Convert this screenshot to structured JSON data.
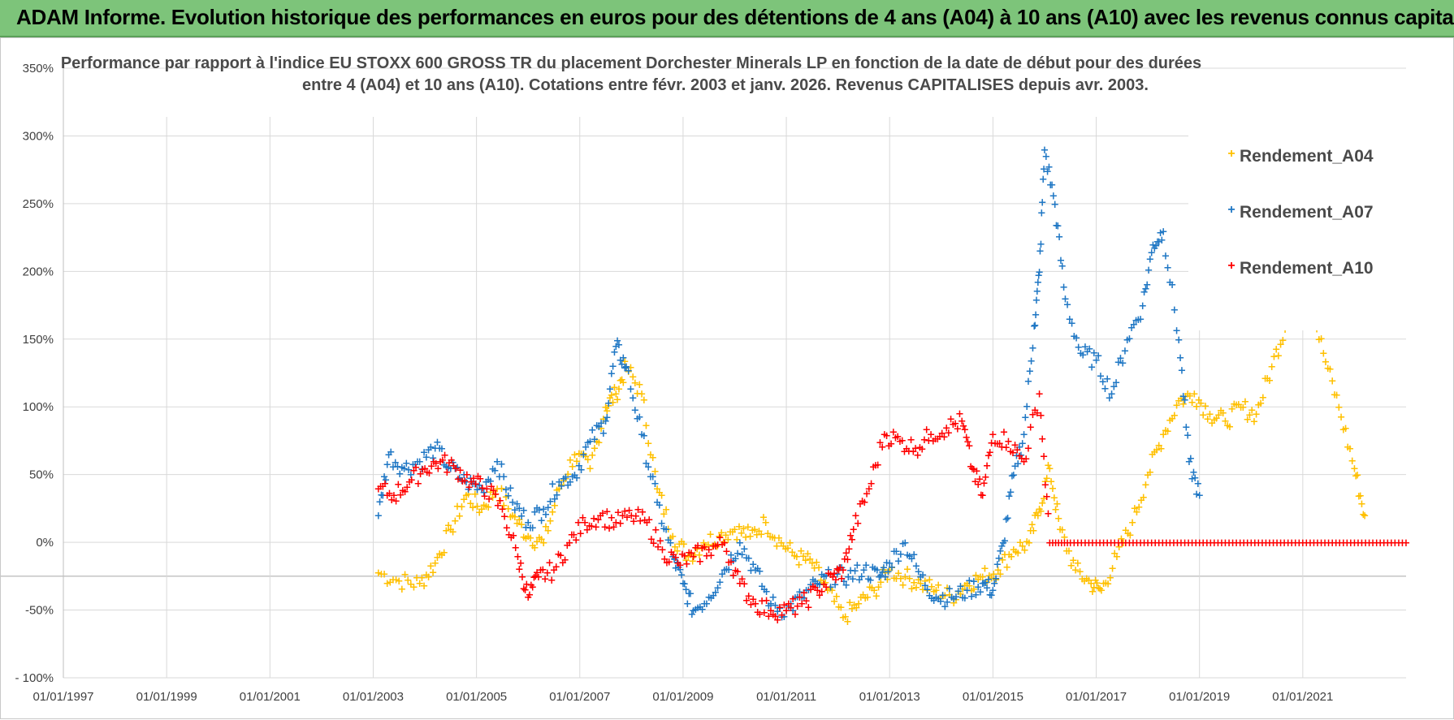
{
  "header": {
    "title": "ADAM Informe. Evolution historique des performances en euros pour des détentions de 4 ans (A04) à 10 ans (A10) avec les revenus connus capitalisés"
  },
  "colors": {
    "header_bg": "#7dc47a",
    "A04": "#ffc000",
    "A07": "#1f77c4",
    "A10": "#ff0000",
    "grid": "#d9d9d9"
  },
  "chart_data": {
    "type": "scatter",
    "title_line1": "Performance par rapport à l'indice EU STOXX 600 GROSS TR  du placement Dorchester Minerals LP en fonction de la date de début pour des durées",
    "title_line2": "entre 4 (A04) et 10 ans (A10).  Cotations entre févr. 2003 et janv. 2026. Revenus CAPITALISES depuis avr. 2003.",
    "xlabel": "",
    "ylabel": "",
    "xlim": [
      1997.0,
      2023.0
    ],
    "ylim": [
      -100,
      350
    ],
    "x_ticks": [
      "01/01/1997",
      "01/01/1999",
      "01/01/2001",
      "01/01/2003",
      "01/01/2005",
      "01/01/2007",
      "01/01/2009",
      "01/01/2011",
      "01/01/2013",
      "01/01/2015",
      "01/01/2017",
      "01/01/2019",
      "01/01/2021"
    ],
    "y_ticks": [
      "350%",
      "300%",
      "250%",
      "200%",
      "150%",
      "100%",
      "50%",
      "0%",
      "-50%",
      "- 100%"
    ],
    "grid": true,
    "legend_position": "top-right",
    "series": [
      {
        "name": "Rendement_A04",
        "color": "#ffc000",
        "x": [
          2003.1,
          2003.5,
          2003.9,
          2004.2,
          2004.5,
          2004.8,
          2005.1,
          2005.4,
          2005.7,
          2006.0,
          2006.3,
          2006.6,
          2006.9,
          2007.2,
          2007.5,
          2007.7,
          2007.9,
          2008.2,
          2008.5,
          2008.8,
          2009.1,
          2009.4,
          2009.7,
          2010.0,
          2010.3,
          2010.6,
          2010.9,
          2011.2,
          2011.5,
          2011.8,
          2012.1,
          2012.4,
          2012.7,
          2013.0,
          2013.3,
          2013.6,
          2013.9,
          2014.2,
          2014.5,
          2014.8,
          2015.1,
          2015.4,
          2015.7,
          2015.9,
          2016.1,
          2016.3,
          2016.6,
          2016.9,
          2017.1,
          2017.4,
          2017.7,
          2018.0,
          2018.3,
          2018.6,
          2018.9,
          2019.2,
          2019.5,
          2019.8,
          2020.1,
          2020.4,
          2020.7,
          2020.9,
          2021.1,
          2021.4,
          2021.7,
          2022.0,
          2022.2
        ],
        "y": [
          -22,
          -28,
          -30,
          -15,
          10,
          35,
          25,
          40,
          20,
          5,
          0,
          40,
          65,
          55,
          100,
          110,
          130,
          110,
          40,
          5,
          -10,
          0,
          5,
          10,
          5,
          15,
          0,
          -10,
          -15,
          -35,
          -55,
          -45,
          -35,
          -20,
          -25,
          -30,
          -35,
          -40,
          -30,
          -25,
          -20,
          -5,
          0,
          25,
          55,
          10,
          -20,
          -30,
          -35,
          -10,
          15,
          50,
          80,
          105,
          110,
          95,
          90,
          100,
          95,
          130,
          165,
          175,
          185,
          140,
          100,
          55,
          20
        ]
      },
      {
        "name": "Rendement_A07",
        "color": "#1f77c4",
        "x": [
          2003.1,
          2003.3,
          2003.6,
          2003.9,
          2004.2,
          2004.5,
          2004.8,
          2005.1,
          2005.4,
          2005.7,
          2006.0,
          2006.3,
          2006.6,
          2006.9,
          2007.2,
          2007.5,
          2007.7,
          2007.9,
          2008.2,
          2008.5,
          2008.8,
          2009.0,
          2009.2,
          2009.5,
          2009.8,
          2010.1,
          2010.4,
          2010.7,
          2011.0,
          2011.3,
          2011.6,
          2011.9,
          2012.2,
          2012.5,
          2012.8,
          2013.0,
          2013.3,
          2013.6,
          2013.9,
          2014.2,
          2014.5,
          2014.8,
          2015.0,
          2015.2,
          2015.4,
          2015.6,
          2015.8,
          2015.9,
          2016.0,
          2016.2,
          2016.4,
          2016.7,
          2017.0,
          2017.3,
          2017.6,
          2017.9,
          2018.1,
          2018.3,
          2018.6,
          2018.8,
          2019.0
        ],
        "y": [
          20,
          65,
          55,
          60,
          70,
          55,
          45,
          40,
          60,
          30,
          15,
          25,
          45,
          50,
          75,
          90,
          145,
          130,
          80,
          30,
          -10,
          -30,
          -50,
          -40,
          -20,
          0,
          -20,
          -45,
          -50,
          -40,
          -30,
          -25,
          -25,
          -20,
          -25,
          -15,
          0,
          -25,
          -40,
          -40,
          -35,
          -30,
          -35,
          0,
          50,
          80,
          160,
          200,
          290,
          250,
          180,
          140,
          135,
          110,
          150,
          175,
          220,
          230,
          150,
          60,
          35
        ]
      },
      {
        "name": "Rendement_A10",
        "color": "#ff0000",
        "x": [
          2003.1,
          2003.4,
          2003.7,
          2004.0,
          2004.3,
          2004.6,
          2004.9,
          2005.2,
          2005.5,
          2005.8,
          2006.0,
          2006.2,
          2006.5,
          2006.8,
          2007.1,
          2007.4,
          2007.7,
          2008.0,
          2008.3,
          2008.6,
          2008.9,
          2009.2,
          2009.5,
          2009.8,
          2010.1,
          2010.4,
          2010.7,
          2011.0,
          2011.3,
          2011.6,
          2011.9,
          2012.1,
          2012.3,
          2012.6,
          2012.9,
          2013.2,
          2013.5,
          2013.8,
          2014.1,
          2014.4,
          2014.6,
          2014.8,
          2015.0,
          2015.3,
          2015.6,
          2015.9,
          2016.1,
          2016.5,
          2017.0,
          2017.5,
          2018.0,
          2018.5,
          2019.0,
          2019.5,
          2020.0,
          2020.5,
          2021.0,
          2021.5,
          2022.0,
          2022.5,
          2023.0
        ],
        "y": [
          40,
          35,
          45,
          55,
          60,
          55,
          45,
          40,
          25,
          -10,
          -40,
          -25,
          -20,
          0,
          15,
          20,
          15,
          20,
          15,
          -5,
          -15,
          -10,
          -5,
          0,
          -30,
          -45,
          -50,
          -50,
          -45,
          -35,
          -25,
          -20,
          10,
          40,
          80,
          75,
          70,
          80,
          85,
          90,
          55,
          35,
          80,
          75,
          60,
          110,
          0,
          0,
          0,
          0,
          0,
          0,
          0,
          0,
          0,
          0,
          0,
          0,
          0,
          0,
          0
        ]
      }
    ]
  }
}
